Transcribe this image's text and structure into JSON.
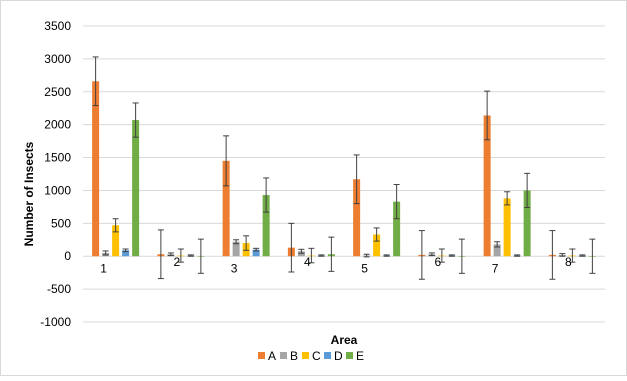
{
  "chart_data": {
    "type": "bar",
    "title": "",
    "xlabel": "Area",
    "ylabel": "Number of Insects",
    "categories": [
      "1",
      "2",
      "3",
      "4",
      "5",
      "6",
      "7",
      "8"
    ],
    "ylim": [
      -1000,
      3500
    ],
    "yticks": [
      -1000,
      -500,
      0,
      500,
      1000,
      1500,
      2000,
      2500,
      3000,
      3500
    ],
    "grid": true,
    "legend_position": "bottom",
    "series": [
      {
        "name": "A",
        "color": "#ed7d31",
        "values": [
          2660,
          30,
          1450,
          130,
          1170,
          20,
          2140,
          20
        ],
        "errors": [
          370,
          370,
          380,
          370,
          370,
          370,
          370,
          370
        ]
      },
      {
        "name": "B",
        "color": "#a5a5a5",
        "values": [
          50,
          30,
          220,
          75,
          10,
          30,
          180,
          20
        ],
        "errors": [
          30,
          20,
          30,
          30,
          20,
          20,
          40,
          20
        ]
      },
      {
        "name": "C",
        "color": "#ffc000",
        "values": [
          470,
          10,
          200,
          10,
          330,
          10,
          880,
          10
        ],
        "errors": [
          100,
          100,
          110,
          110,
          100,
          100,
          100,
          100
        ]
      },
      {
        "name": "D",
        "color": "#5b9bd5",
        "values": [
          90,
          10,
          100,
          10,
          10,
          10,
          10,
          10
        ],
        "errors": [
          20,
          10,
          20,
          10,
          10,
          10,
          10,
          10
        ]
      },
      {
        "name": "E",
        "color": "#70ad47",
        "values": [
          2070,
          0,
          930,
          30,
          830,
          0,
          1000,
          0
        ],
        "errors": [
          260,
          260,
          260,
          260,
          260,
          260,
          260,
          260
        ]
      }
    ]
  }
}
